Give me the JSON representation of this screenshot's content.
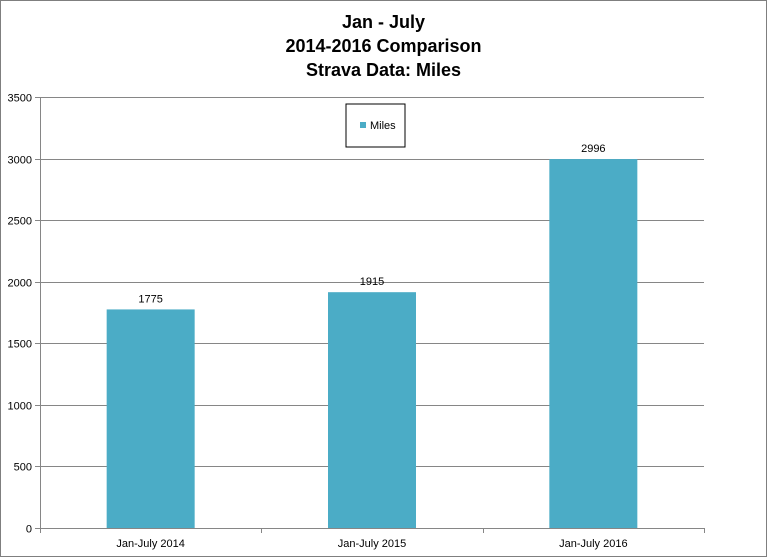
{
  "chart_data": {
    "type": "bar",
    "title_lines": [
      "Jan - July",
      "2014-2016 Comparison",
      "Strava Data: Miles"
    ],
    "categories": [
      "Jan-July 2014",
      "Jan-July 2015",
      "Jan-July 2016"
    ],
    "series": [
      {
        "name": "Miles",
        "values": [
          1775,
          1915,
          2996
        ],
        "color": "#4bacc6"
      }
    ],
    "data_labels": [
      "1775",
      "1915",
      "2996"
    ],
    "ylim": [
      0,
      3500
    ],
    "yticks": [
      0,
      500,
      1000,
      1500,
      2000,
      2500,
      3000,
      3500
    ],
    "grid": true,
    "legend": "top-center-inside",
    "colors": {
      "gridline": "#868686",
      "axis": "#868686",
      "border": "#7f7f7f"
    }
  }
}
